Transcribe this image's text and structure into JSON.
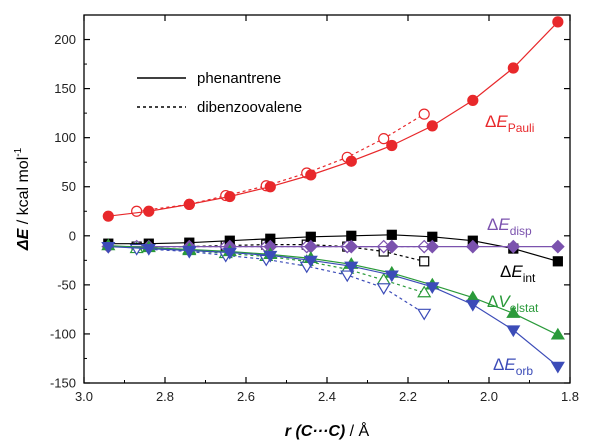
{
  "chart_data": {
    "type": "line",
    "xlabel_var": "r",
    "xlabel_paren": "(C···C)",
    "xlabel_unit": " / Å",
    "ylabel_var": "ΔE",
    "ylabel_unit": " / kcal mol",
    "ylabel_exp": "-1",
    "xlim": [
      3.0,
      1.8
    ],
    "ylim": [
      -150,
      225
    ],
    "x_ticks": [
      3.0,
      2.8,
      2.6,
      2.4,
      2.2,
      2.0,
      1.8
    ],
    "x_tick_labels": [
      "3.0",
      "2.8",
      "2.6",
      "2.4",
      "2.2",
      "2.0",
      "1.8"
    ],
    "y_ticks": [
      -150,
      -100,
      -50,
      0,
      50,
      100,
      150,
      200
    ],
    "y_tick_labels": [
      "-150",
      "-100",
      "-50",
      "0",
      "50",
      "100",
      "150",
      "200"
    ],
    "legend": [
      {
        "label": "phenantrene",
        "style": "solid"
      },
      {
        "label": "dibenzoovalene",
        "style": "dotted"
      }
    ],
    "series": [
      {
        "name": "ΔE",
        "name_sub": "Pauli",
        "color": "#e8282b",
        "marker": "circle",
        "molecule": "phenantrene",
        "filled": true,
        "x": [
          2.94,
          2.84,
          2.74,
          2.64,
          2.54,
          2.44,
          2.34,
          2.24,
          2.14,
          2.04,
          1.94,
          1.83
        ],
        "y": [
          20,
          25,
          32,
          40,
          50,
          62,
          76,
          92,
          112,
          138,
          171,
          218
        ]
      },
      {
        "name": "ΔE",
        "name_sub": "Pauli",
        "color": "#e8282b",
        "marker": "circle",
        "molecule": "dibenzoovalene",
        "filled": false,
        "x": [
          2.87,
          2.74,
          2.65,
          2.55,
          2.45,
          2.35,
          2.26,
          2.16
        ],
        "y": [
          25,
          32,
          41,
          51,
          64,
          80,
          99,
          124
        ]
      },
      {
        "name": "ΔE",
        "name_sub": "int",
        "color": "#000000",
        "marker": "square",
        "molecule": "phenantrene",
        "filled": true,
        "x": [
          2.94,
          2.84,
          2.74,
          2.64,
          2.54,
          2.44,
          2.34,
          2.24,
          2.14,
          2.04,
          1.94,
          1.83
        ],
        "y": [
          -8,
          -8,
          -7,
          -5,
          -3,
          -1,
          0,
          1,
          -1,
          -5,
          -13,
          -26
        ]
      },
      {
        "name": "ΔE",
        "name_sub": "int",
        "color": "#000000",
        "marker": "square",
        "molecule": "dibenzoovalene",
        "filled": false,
        "x": [
          2.87,
          2.74,
          2.65,
          2.55,
          2.45,
          2.35,
          2.26,
          2.16
        ],
        "y": [
          -11,
          -11,
          -10,
          -9,
          -9,
          -11,
          -16,
          -26
        ]
      },
      {
        "name": "ΔE",
        "name_sub": "disp",
        "color": "#7b52ae",
        "marker": "diamond",
        "molecule": "phenantrene",
        "filled": true,
        "x": [
          2.94,
          2.84,
          2.74,
          2.64,
          2.54,
          2.44,
          2.34,
          2.24,
          2.14,
          2.04,
          1.94,
          1.83
        ],
        "y": [
          -11,
          -11,
          -11,
          -11,
          -11,
          -11,
          -11,
          -11,
          -11,
          -11,
          -11,
          -11
        ]
      },
      {
        "name": "ΔE",
        "name_sub": "disp",
        "color": "#7b52ae",
        "marker": "diamond",
        "molecule": "dibenzoovalene",
        "filled": false,
        "x": [
          2.87,
          2.74,
          2.65,
          2.55,
          2.45,
          2.35,
          2.26,
          2.16
        ],
        "y": [
          -11,
          -11,
          -11,
          -11,
          -11,
          -11,
          -11,
          -11
        ]
      },
      {
        "name": "ΔV",
        "name_sub": "elstat",
        "color": "#2a9a3a",
        "marker": "triangle-up",
        "molecule": "phenantrene",
        "filled": true,
        "x": [
          2.94,
          2.84,
          2.74,
          2.64,
          2.54,
          2.44,
          2.34,
          2.24,
          2.14,
          2.04,
          1.94,
          1.83
        ],
        "y": [
          -10,
          -12,
          -14,
          -16,
          -19,
          -23,
          -29,
          -38,
          -50,
          -63,
          -79,
          -101
        ]
      },
      {
        "name": "ΔV",
        "name_sub": "elstat",
        "color": "#2a9a3a",
        "marker": "triangle-up",
        "molecule": "dibenzoovalene",
        "filled": false,
        "x": [
          2.87,
          2.74,
          2.65,
          2.55,
          2.45,
          2.35,
          2.26,
          2.16
        ],
        "y": [
          -13,
          -15,
          -18,
          -21,
          -26,
          -34,
          -45,
          -58
        ]
      },
      {
        "name": "ΔE",
        "name_sub": "orb",
        "color": "#3c4cb8",
        "marker": "triangle-down",
        "molecule": "phenantrene",
        "filled": true,
        "x": [
          2.94,
          2.84,
          2.74,
          2.64,
          2.54,
          2.44,
          2.34,
          2.24,
          2.14,
          2.04,
          1.94,
          1.83
        ],
        "y": [
          -11,
          -13,
          -15,
          -17,
          -20,
          -25,
          -31,
          -40,
          -52,
          -70,
          -96,
          -133
        ]
      },
      {
        "name": "ΔE",
        "name_sub": "orb",
        "color": "#3c4cb8",
        "marker": "triangle-down",
        "molecule": "dibenzoovalene",
        "filled": false,
        "x": [
          2.87,
          2.74,
          2.65,
          2.55,
          2.45,
          2.35,
          2.26,
          2.16
        ],
        "y": [
          -13,
          -16,
          -20,
          -24,
          -31,
          -40,
          -53,
          -79
        ]
      }
    ]
  }
}
